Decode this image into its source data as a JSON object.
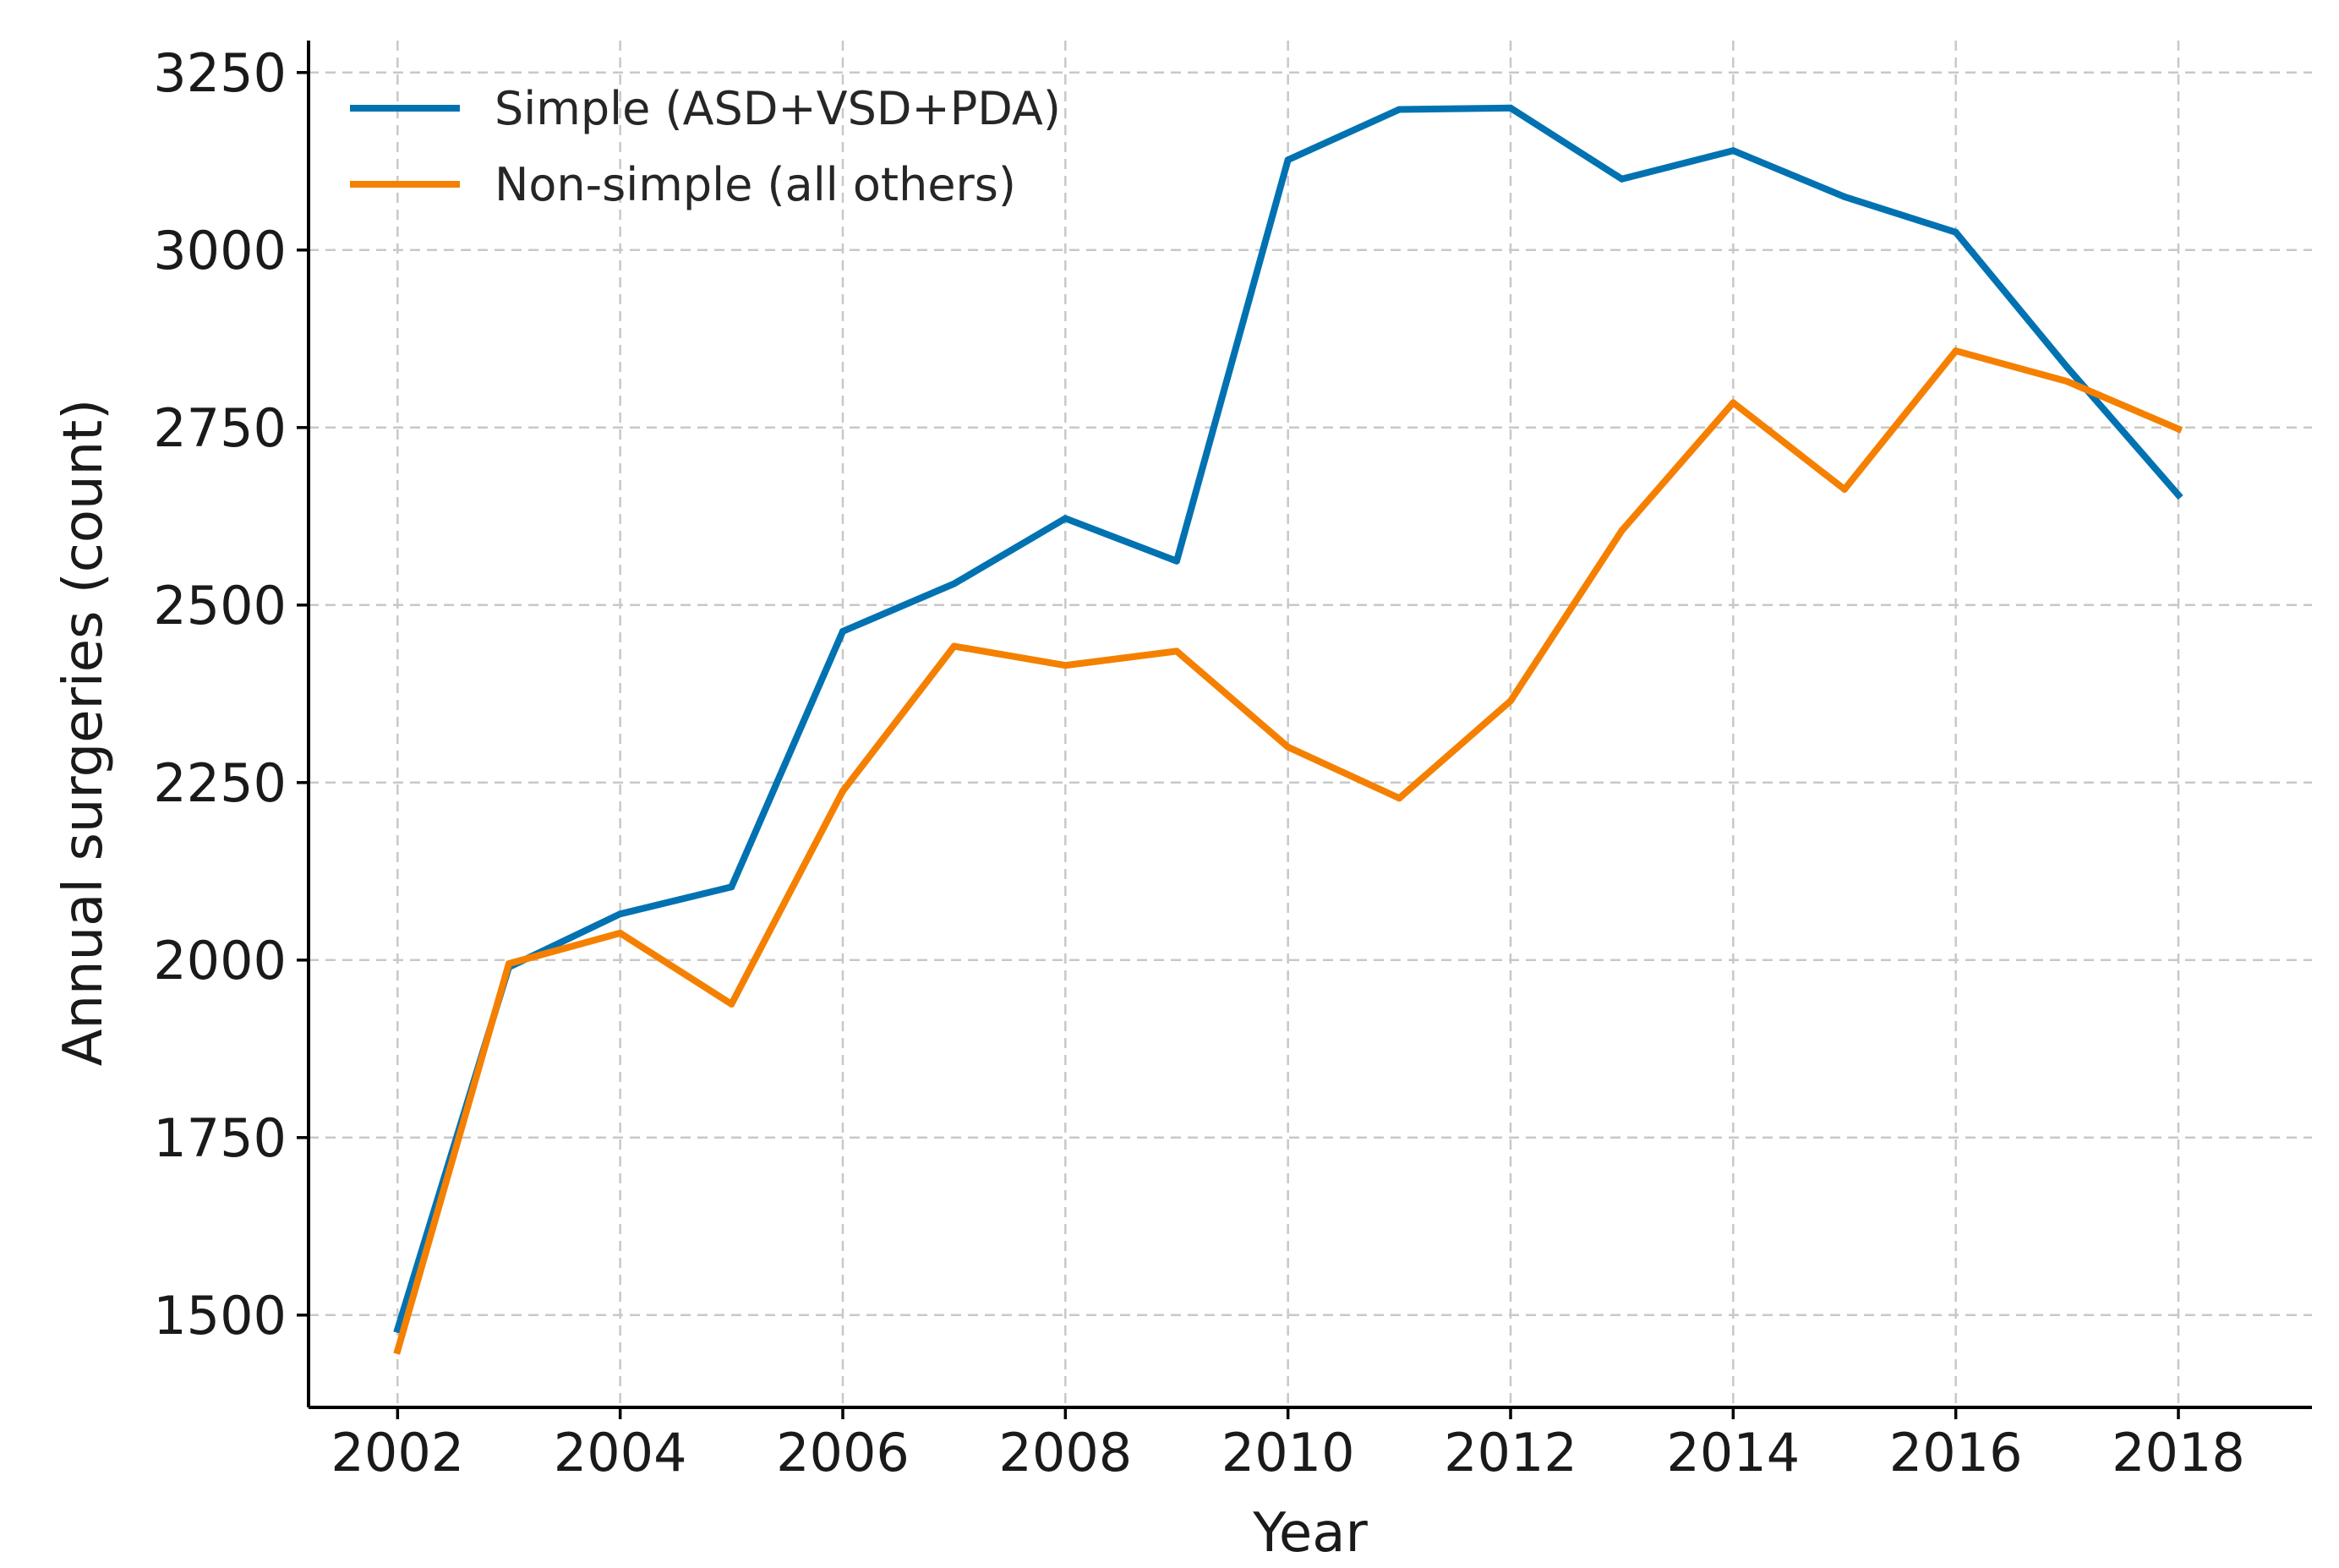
{
  "chart_data": {
    "type": "line",
    "title": "",
    "xlabel": "Year",
    "ylabel": "Annual surgeries (count)",
    "x": [
      2002,
      2003,
      2004,
      2005,
      2006,
      2007,
      2008,
      2009,
      2010,
      2011,
      2012,
      2013,
      2014,
      2015,
      2016,
      2017,
      2018
    ],
    "xticks": [
      "2002",
      "2004",
      "2006",
      "2008",
      "2010",
      "2012",
      "2014",
      "2016",
      "2018"
    ],
    "yticks": [
      "1500",
      "1750",
      "2000",
      "2250",
      "2500",
      "2750",
      "3000",
      "3250"
    ],
    "xlim": [
      2001.2,
      2019.2
    ],
    "ylim": [
      1370,
      3295
    ],
    "grid": true,
    "legend_position": "top-left",
    "series": [
      {
        "name": "Simple (ASD+VSD+PDA)",
        "color": "#0072b2",
        "values": [
          1480,
          1990,
          2065,
          2103,
          2463,
          2530,
          2622,
          2562,
          3127,
          3198,
          3200,
          3100,
          3140,
          3075,
          3025,
          2835,
          2655
        ]
      },
      {
        "name": "Non-simple (all others)",
        "color": "#f58000",
        "values": [
          1450,
          1995,
          2038,
          1938,
          2238,
          2442,
          2415,
          2435,
          2300,
          2228,
          2365,
          2605,
          2785,
          2663,
          2858,
          2815,
          2748
        ]
      }
    ]
  }
}
